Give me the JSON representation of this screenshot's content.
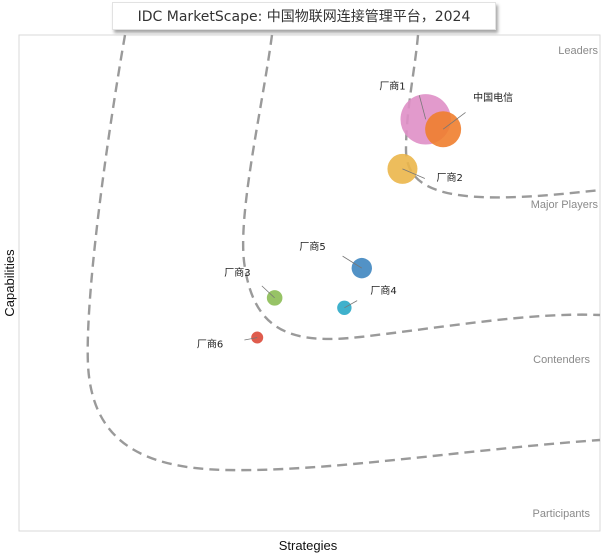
{
  "chart_data": {
    "type": "scatter",
    "title": "IDC MarketScape: 中国物联网连接管理平台，2024",
    "xlabel": "Strategies",
    "ylabel": "Capabilities",
    "xlim": [
      0,
      1
    ],
    "ylim": [
      0,
      1
    ],
    "grid": false,
    "segments": [
      "Leaders",
      "Major Players",
      "Contenders",
      "Participants"
    ],
    "points": [
      {
        "label": "厂商1",
        "x": 0.7,
        "y": 0.83,
        "size": 4.2,
        "color": "#df8fc6"
      },
      {
        "label": "中国电信",
        "x": 0.73,
        "y": 0.81,
        "size": 3.0,
        "color": "#f07e2e"
      },
      {
        "label": "厂商2",
        "x": 0.66,
        "y": 0.73,
        "size": 2.5,
        "color": "#ebb64a"
      },
      {
        "label": "厂商5",
        "x": 0.59,
        "y": 0.53,
        "size": 1.7,
        "color": "#3f86c0"
      },
      {
        "label": "厂商3",
        "x": 0.44,
        "y": 0.47,
        "size": 1.3,
        "color": "#8cbc55"
      },
      {
        "label": "厂商4",
        "x": 0.56,
        "y": 0.45,
        "size": 1.2,
        "color": "#2aa9c6"
      },
      {
        "label": "厂商6",
        "x": 0.41,
        "y": 0.39,
        "size": 1.0,
        "color": "#dc4a3a"
      }
    ]
  }
}
